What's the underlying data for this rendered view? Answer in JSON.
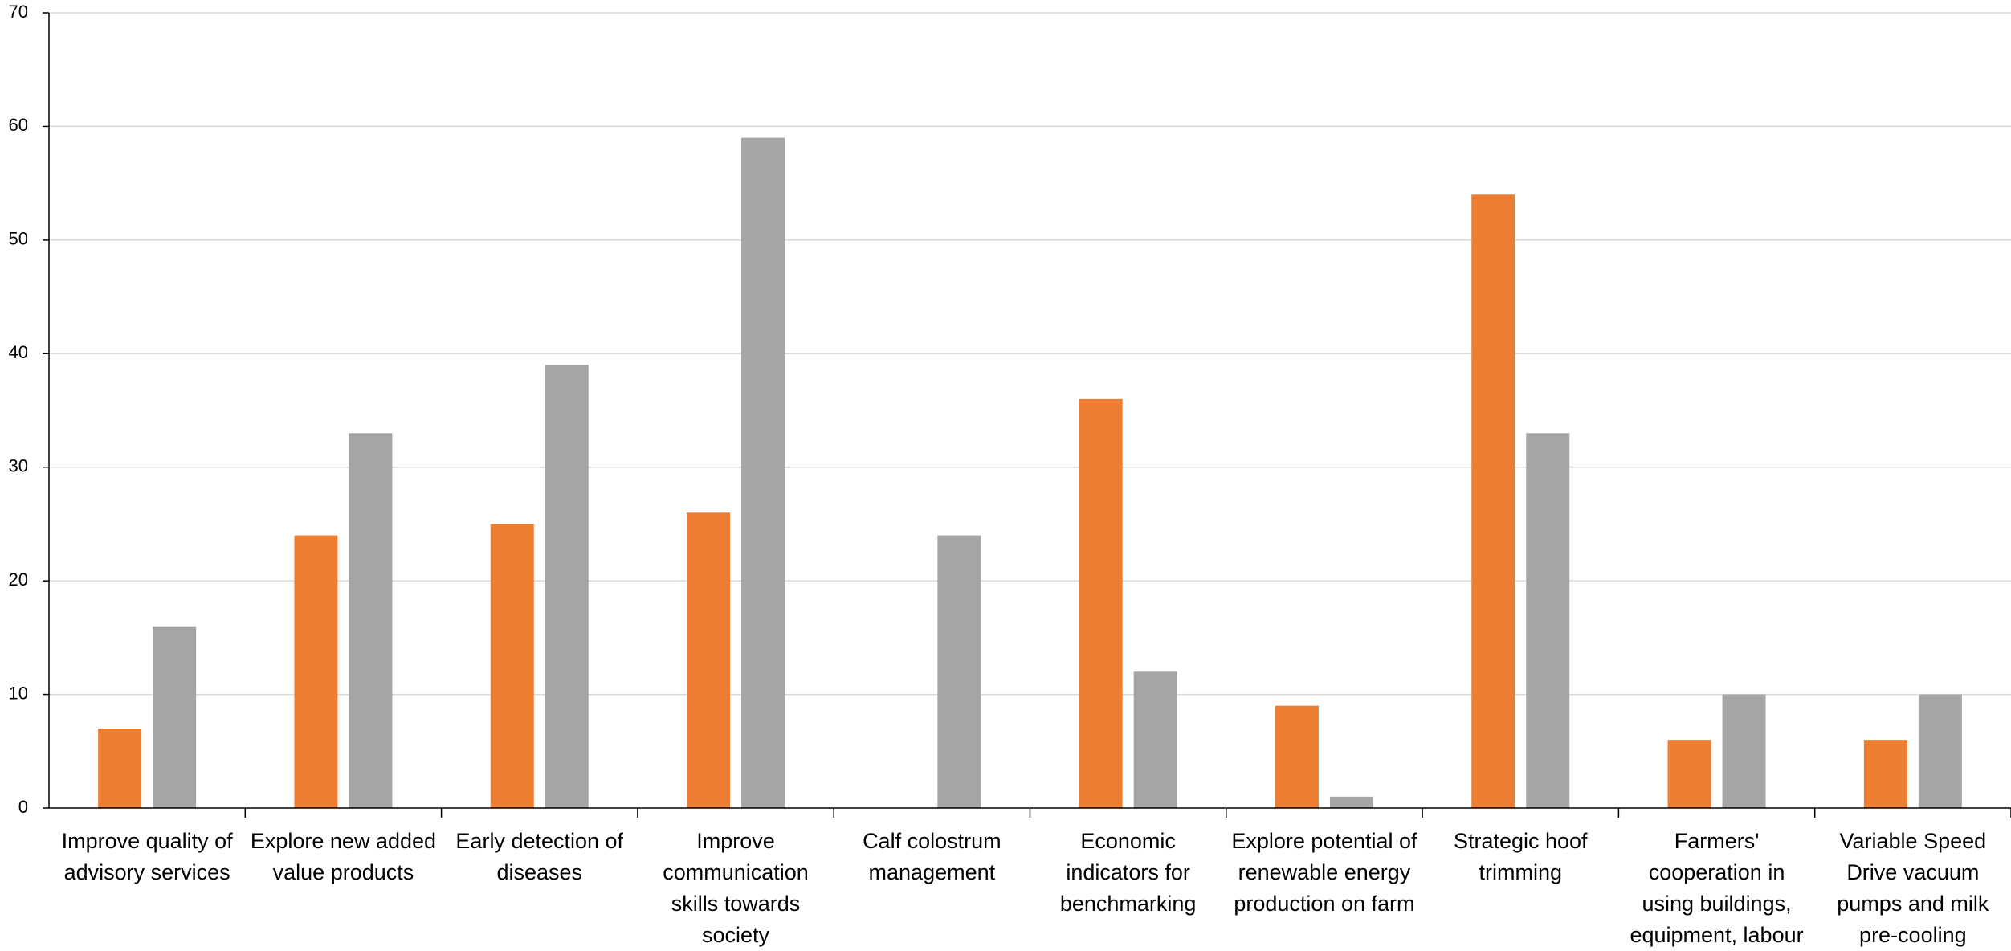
{
  "chart_data": {
    "type": "bar",
    "categories": [
      "Improve quality of advisory services",
      "Explore new added value products",
      "Early detection of diseases",
      "Improve communication skills towards society",
      "Calf colostrum management",
      "Economic indicators for benchmarking",
      "Explore potential of renewable energy production on farm",
      "Strategic hoof trimming",
      "Farmers' cooperation in using buildings, equipment, labour",
      "Variable Speed Drive vacuum pumps and milk pre-cooling"
    ],
    "series": [
      {
        "color": "#ed7d31",
        "values": [
          7,
          24,
          25,
          26,
          0,
          36,
          9,
          54,
          6,
          6
        ]
      },
      {
        "color": "#a5a5a5",
        "values": [
          16,
          33,
          39,
          59,
          24,
          12,
          1,
          33,
          10,
          10
        ]
      }
    ],
    "ylim": [
      0,
      70
    ],
    "yticks": [
      0,
      10,
      20,
      30,
      40,
      50,
      60,
      70
    ],
    "grid": true
  }
}
